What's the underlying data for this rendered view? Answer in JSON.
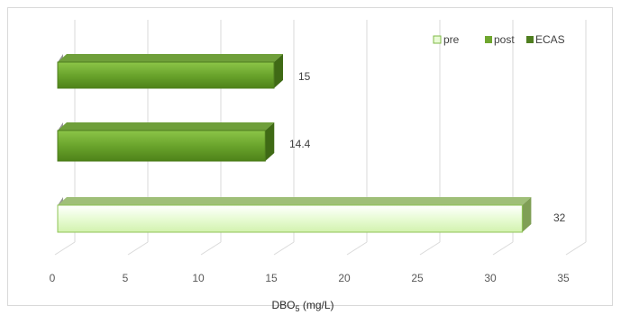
{
  "chart_data": {
    "type": "bar",
    "orientation": "horizontal",
    "three_d": true,
    "categories": [
      "",
      "",
      ""
    ],
    "series": [
      {
        "name": "pre",
        "values": [
          32,
          null,
          null
        ],
        "color": "#e9fbd6"
      },
      {
        "name": "post",
        "values": [
          null,
          14.4,
          null
        ],
        "color": "#6fa62f"
      },
      {
        "name": "ECAS",
        "values": [
          null,
          null,
          15
        ],
        "color": "#4f7e1f"
      }
    ],
    "title": "",
    "xlabel": "DBO",
    "xlabel_sub": "5",
    "xlabel_unit": " (mg/L)",
    "ylabel": "",
    "xlim": [
      0,
      35
    ],
    "xticks": [
      0,
      5,
      10,
      15,
      20,
      25,
      30,
      35
    ],
    "data_labels": [
      "32",
      "14.4",
      "15"
    ],
    "grid": true,
    "legend_position": "top-right"
  },
  "colors": {
    "grid": "#d9d9d9",
    "pre_fill": "#e9fbd6",
    "pre_stroke": "#7fb845",
    "post_fill": "#6fa62f",
    "ecas_fill": "#4f7e1f"
  }
}
